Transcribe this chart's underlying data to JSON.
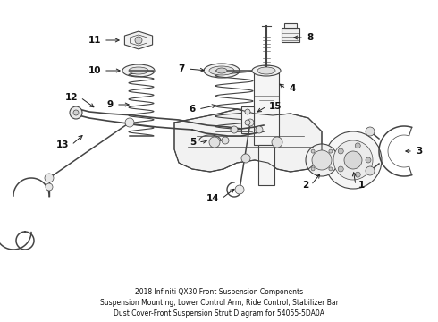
{
  "title": "2018 Infiniti QX30 Front Suspension Components",
  "subtitle": "Suspension Mounting, Lower Control Arm, Ride Control, Stabilizer Bar",
  "part_number": "Dust Cover-Front Suspension Strut Diagram for 54055-5DA0A",
  "background_color": "#ffffff",
  "line_color": "#444444",
  "figsize": [
    4.9,
    3.6
  ],
  "dpi": 100
}
